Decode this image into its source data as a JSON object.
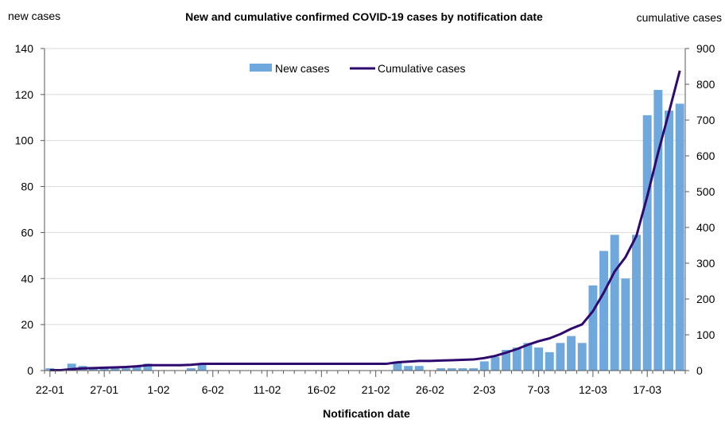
{
  "chart_data": {
    "type": "bar",
    "title": "New and cumulative confirmed COVID-19 cases by notification date",
    "xlabel": "Notification date",
    "ylabel_left": "new cases",
    "ylabel_right": "cumulative cases",
    "ylim_left": [
      0,
      140
    ],
    "yticks_left": [
      "0",
      "20",
      "40",
      "60",
      "80",
      "100",
      "120",
      "140"
    ],
    "ylim_right": [
      0,
      900
    ],
    "yticks_right": [
      "0",
      "100",
      "200",
      "300",
      "400",
      "500",
      "600",
      "700",
      "800",
      "900"
    ],
    "grid": true,
    "legend_position": "top",
    "x_tick_labels": [
      "22-01",
      "27-01",
      "1-02",
      "6-02",
      "11-02",
      "16-02",
      "21-02",
      "26-02",
      "2-03",
      "7-03",
      "12-03",
      "17-03"
    ],
    "categories": [
      "22-01",
      "23-01",
      "24-01",
      "25-01",
      "26-01",
      "27-01",
      "28-01",
      "29-01",
      "30-01",
      "31-01",
      "1-02",
      "2-02",
      "3-02",
      "4-02",
      "5-02",
      "6-02",
      "7-02",
      "8-02",
      "9-02",
      "10-02",
      "11-02",
      "12-02",
      "13-02",
      "14-02",
      "15-02",
      "16-02",
      "17-02",
      "18-02",
      "19-02",
      "20-02",
      "21-02",
      "22-02",
      "23-02",
      "24-02",
      "25-02",
      "26-02",
      "27-02",
      "28-02",
      "29-02",
      "1-03",
      "2-03",
      "3-03",
      "4-03",
      "5-03",
      "6-03",
      "7-03",
      "8-03",
      "9-03",
      "10-03",
      "11-03",
      "12-03",
      "13-03",
      "14-03",
      "15-03",
      "16-03",
      "17-03",
      "18-03",
      "19-03",
      "20-03"
    ],
    "series": [
      {
        "name": "New cases",
        "type": "bar",
        "axis": "left",
        "color": "#6fa8dc",
        "values": [
          1,
          0,
          3,
          2,
          1,
          1,
          1,
          1,
          2,
          3,
          0,
          0,
          0,
          1,
          3,
          0,
          0,
          0,
          0,
          0,
          0,
          0,
          0,
          0,
          0,
          0,
          0,
          0,
          0,
          0,
          0,
          0,
          4,
          2,
          2,
          0,
          1,
          1,
          1,
          1,
          4,
          6,
          9,
          10,
          12,
          10,
          8,
          12,
          15,
          12,
          37,
          52,
          59,
          40,
          59,
          111,
          122,
          113,
          116
        ]
      },
      {
        "name": "Cumulative cases",
        "type": "line",
        "axis": "right",
        "color": "#2e0a6e",
        "values": [
          1,
          1,
          4,
          6,
          7,
          8,
          9,
          10,
          12,
          15,
          15,
          15,
          15,
          16,
          19,
          19,
          19,
          19,
          19,
          19,
          19,
          19,
          19,
          19,
          19,
          19,
          19,
          19,
          19,
          19,
          19,
          19,
          23,
          25,
          27,
          27,
          28,
          29,
          30,
          31,
          35,
          41,
          50,
          60,
          72,
          82,
          90,
          102,
          117,
          129,
          166,
          218,
          277,
          317,
          376,
          487,
          609,
          722,
          838
        ]
      }
    ]
  }
}
